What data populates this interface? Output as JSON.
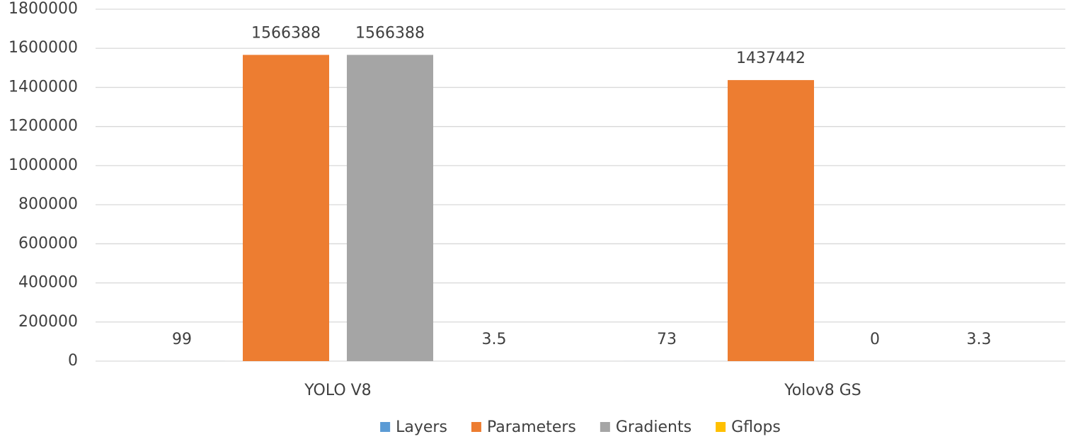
{
  "chart_data": {
    "type": "bar",
    "categories": [
      "YOLO V8",
      "Yolov8 GS"
    ],
    "series": [
      {
        "name": "Layers",
        "color": "#5b9bd5",
        "values": [
          99,
          73
        ]
      },
      {
        "name": "Parameters",
        "color": "#ed7d31",
        "values": [
          1566388,
          1437442
        ]
      },
      {
        "name": "Gradients",
        "color": "#a5a5a5",
        "values": [
          1566388,
          0
        ]
      },
      {
        "name": "Gflops",
        "color": "#ffc000",
        "values": [
          3.5,
          3.3
        ]
      }
    ],
    "ylim": [
      0,
      1800000
    ],
    "yticks": [
      0,
      200000,
      400000,
      600000,
      800000,
      1000000,
      1200000,
      1400000,
      1600000,
      1800000
    ],
    "grid": true,
    "legend": "bottom"
  }
}
